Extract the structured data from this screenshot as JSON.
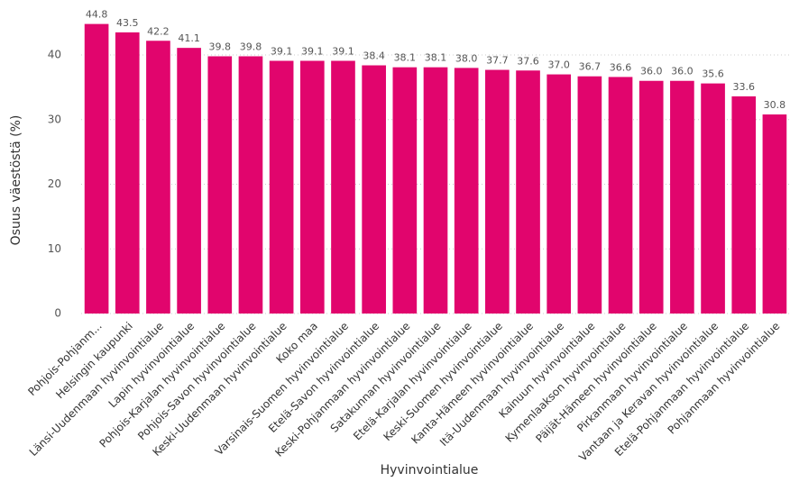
{
  "chart_data": {
    "type": "bar",
    "x_label": "Hyvinvointialue",
    "y_label": "Osuus väestöstä (%)",
    "categories": [
      "Pohjois-Pohjanm...",
      "Helsingin kaupunki",
      "Länsi-Uudenmaan hyvinvointialue",
      "Lapin hyvinvointialue",
      "Pohjois-Karjalan hyvinvointialue",
      "Pohjois-Savon hyvinvointialue",
      "Keski-Uudenmaan hyvinvointialue",
      "Koko maa",
      "Varsinais-Suomen hyvinvointialue",
      "Etelä-Savon hyvinvointialue",
      "Keski-Pohjanmaan hyvinvointialue",
      "Satakunnan hyvinvointialue",
      "Etelä-Karjalan hyvinvointialue",
      "Keski-Suomen hyvinvointialue",
      "Kanta-Hämeen hyvinvointialue",
      "Itä-Uudenmaan hyvinvointialue",
      "Kainuun hyvinvointialue",
      "Kymenlaakson hyvinvointialue",
      "Päijät-Hämeen hyvinvointialue",
      "Pirkanmaan hyvinvointialue",
      "Vantaan ja Keravan hyvinvointialue",
      "Etelä-Pohjanmaan hyvinvointialue",
      "Pohjanmaan hyvinvointialue"
    ],
    "values": [
      44.8,
      43.5,
      42.2,
      41.1,
      39.8,
      39.8,
      39.1,
      39.1,
      39.1,
      38.4,
      38.1,
      38.1,
      38.0,
      37.7,
      37.6,
      37.0,
      36.7,
      36.6,
      36.0,
      36.0,
      35.6,
      33.6,
      30.8
    ],
    "value_labels": [
      "44.8",
      "43.5",
      "42.2",
      "41.1",
      "39.8",
      "39.8",
      "39.1",
      "39.1",
      "39.1",
      "38.4",
      "38.1",
      "38.1",
      "38.0",
      "37.7",
      "37.6",
      "37.0",
      "36.7",
      "36.6",
      "36.0",
      "36.0",
      "35.6",
      "33.6",
      "30.8"
    ],
    "color": "#e1056d",
    "ylim": [
      0,
      46
    ],
    "yticks": [
      0,
      10,
      20,
      30,
      40
    ],
    "grid": true
  }
}
